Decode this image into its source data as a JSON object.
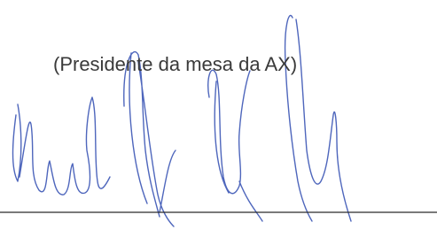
{
  "caption": "(Presidente da mesa da AX)"
}
